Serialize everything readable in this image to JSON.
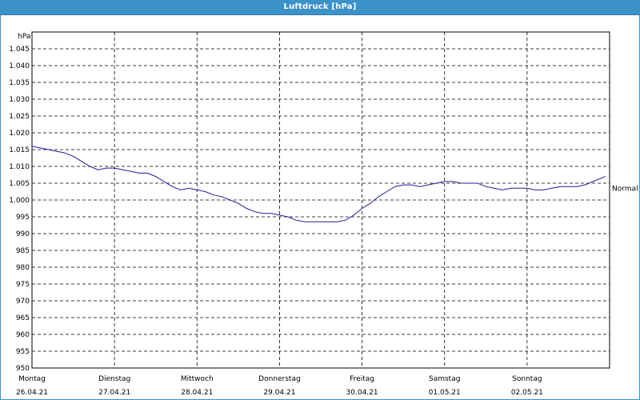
{
  "window": {
    "title": "Luftdruck [hPa]"
  },
  "colors": {
    "titlebar": "#3b92c9",
    "line": "#1c1c9c",
    "grid": "#000000"
  },
  "chart_data": {
    "type": "line",
    "title": "Luftdruck [hPa]",
    "ylabel": "hPa",
    "ylim": [
      950,
      1050
    ],
    "yticks": [
      "1.045",
      "1.040",
      "1.035",
      "1.030",
      "1.025",
      "1.020",
      "1.015",
      "1.010",
      "1.005",
      "1.000",
      "995",
      "990",
      "985",
      "980",
      "975",
      "970",
      "965",
      "960",
      "955",
      "950"
    ],
    "ytick_values": [
      1045,
      1040,
      1035,
      1030,
      1025,
      1020,
      1015,
      1010,
      1005,
      1000,
      995,
      990,
      985,
      980,
      975,
      970,
      965,
      960,
      955,
      950
    ],
    "xlim": [
      0,
      7
    ],
    "x_ticks": [
      {
        "day": "Montag",
        "date": "26.04.21"
      },
      {
        "day": "Dienstag",
        "date": "27.04.21"
      },
      {
        "day": "Mittwoch",
        "date": "28.04.21"
      },
      {
        "day": "Donnerstag",
        "date": "29.04.21"
      },
      {
        "day": "Freitag",
        "date": "30.04.21"
      },
      {
        "day": "Samstag",
        "date": "01.05.21"
      },
      {
        "day": "Sonntag",
        "date": "02.05.21"
      }
    ],
    "reference_label": "Normal",
    "reference_value": 1003.5,
    "grid": true,
    "series": [
      {
        "x": [
          0,
          0.1,
          0.2,
          0.3,
          0.4,
          0.5,
          0.6,
          0.7,
          0.8,
          0.9,
          1.0,
          1.1,
          1.2,
          1.3,
          1.4,
          1.5,
          1.6,
          1.7,
          1.8,
          1.9,
          2.0,
          2.1,
          2.2,
          2.3,
          2.4,
          2.5,
          2.6,
          2.7,
          2.8,
          2.9,
          3.0,
          3.1,
          3.2,
          3.3,
          3.4,
          3.5,
          3.6,
          3.7,
          3.8,
          3.9,
          4.0,
          4.1,
          4.2,
          4.3,
          4.4,
          4.5,
          4.6,
          4.7,
          4.8,
          4.9,
          5.0,
          5.1,
          5.2,
          5.3,
          5.4,
          5.5,
          5.6,
          5.7,
          5.8,
          5.9,
          6.0,
          6.1,
          6.2,
          6.3,
          6.4,
          6.5,
          6.6,
          6.7,
          6.8,
          6.9,
          6.95
        ],
        "values": [
          1016,
          1015.5,
          1015,
          1014.5,
          1014,
          1013,
          1011.5,
          1010,
          1009,
          1009.5,
          1009.5,
          1009,
          1008.5,
          1008,
          1008,
          1007,
          1005.5,
          1004,
          1003,
          1003.5,
          1003,
          1002.5,
          1001.5,
          1001,
          1000,
          999,
          997.5,
          996.5,
          996,
          996,
          995.5,
          995,
          994,
          993.5,
          993.5,
          993.5,
          993.5,
          993.5,
          994,
          995.5,
          997.5,
          999,
          1001,
          1002.5,
          1004,
          1004.5,
          1004.5,
          1004,
          1004.5,
          1005,
          1005.5,
          1005.5,
          1005,
          1005,
          1005,
          1004,
          1003.5,
          1003,
          1003.5,
          1003.5,
          1003.5,
          1003,
          1003,
          1003.5,
          1004,
          1004,
          1004,
          1004.5,
          1005.5,
          1006.5,
          1007
        ]
      }
    ]
  }
}
